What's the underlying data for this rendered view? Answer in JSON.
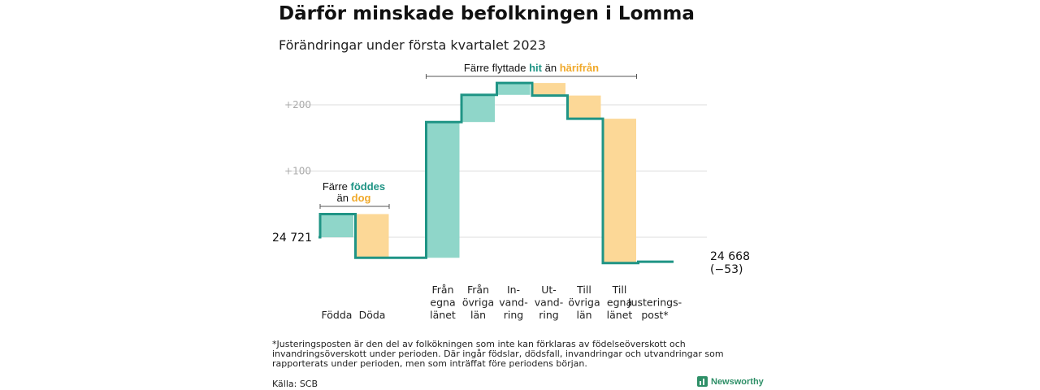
{
  "title": "Därför minskade befolkningen i Lomma",
  "subtitle": "Förändringar under första kvartalet 2023",
  "colors": {
    "increase": "#8fd6c9",
    "decrease": "#fcd897",
    "line": "#1f9485",
    "hit": "#1f9485",
    "harifran": "#f0a92a",
    "grid": "#dddddd",
    "tick": "#aaaaaa"
  },
  "chart_data": {
    "type": "waterfall",
    "start": {
      "value": 24721,
      "label": "24 721"
    },
    "end": {
      "value": 24668,
      "label": "24 668",
      "change_label": "(−53)"
    },
    "ylim": [
      -55,
      250
    ],
    "yticks": [
      {
        "value": 100,
        "label": "+100"
      },
      {
        "value": 200,
        "label": "+200"
      }
    ],
    "grid": true,
    "steps": [
      {
        "label": [
          "Födda"
        ],
        "change": 35,
        "kind": "increase"
      },
      {
        "label": [
          "Döda"
        ],
        "change": -66,
        "kind": "decrease"
      },
      {
        "label": [],
        "change": 0,
        "kind": "gap"
      },
      {
        "label": [
          "Från",
          "egna",
          "länet"
        ],
        "change": 205,
        "kind": "increase"
      },
      {
        "label": [
          "Från",
          "övriga",
          "län"
        ],
        "change": 41,
        "kind": "increase"
      },
      {
        "label": [
          "In-",
          "vand-",
          "ring"
        ],
        "change": 18,
        "kind": "increase"
      },
      {
        "label": [
          "Ut-",
          "vand-",
          "ring"
        ],
        "change": -19,
        "kind": "decrease"
      },
      {
        "label": [
          "Till",
          "övriga",
          "län"
        ],
        "change": -35,
        "kind": "decrease"
      },
      {
        "label": [
          "Till",
          "egna",
          "länet"
        ],
        "change": -218,
        "kind": "decrease"
      },
      {
        "label": [
          "Justerings-",
          "post*"
        ],
        "change": 2,
        "kind": "line"
      }
    ],
    "annotations": [
      {
        "lines": [
          [
            {
              "t": "Färre "
            },
            {
              "t": "föddes",
              "c": "hit"
            }
          ],
          [
            {
              "t": "än "
            },
            {
              "t": "dog",
              "c": "harifran"
            }
          ]
        ]
      },
      {
        "lines": [
          [
            {
              "t": "Färre flyttade "
            },
            {
              "t": "hit",
              "c": "hit"
            },
            {
              "t": " än "
            },
            {
              "t": "härifrån",
              "c": "harifran"
            }
          ]
        ]
      }
    ]
  },
  "footnote": "*Justeringsposten är den del av folkökningen som inte kan förklaras av födelseöverskott och invandringsöverskott under perioden. Där ingår födslar, dödsfall, invandringar och utvandringar som rapporterats under perioden, men som inträffat före periodens början.",
  "source": "Källa: SCB",
  "brand": "Newsworthy"
}
